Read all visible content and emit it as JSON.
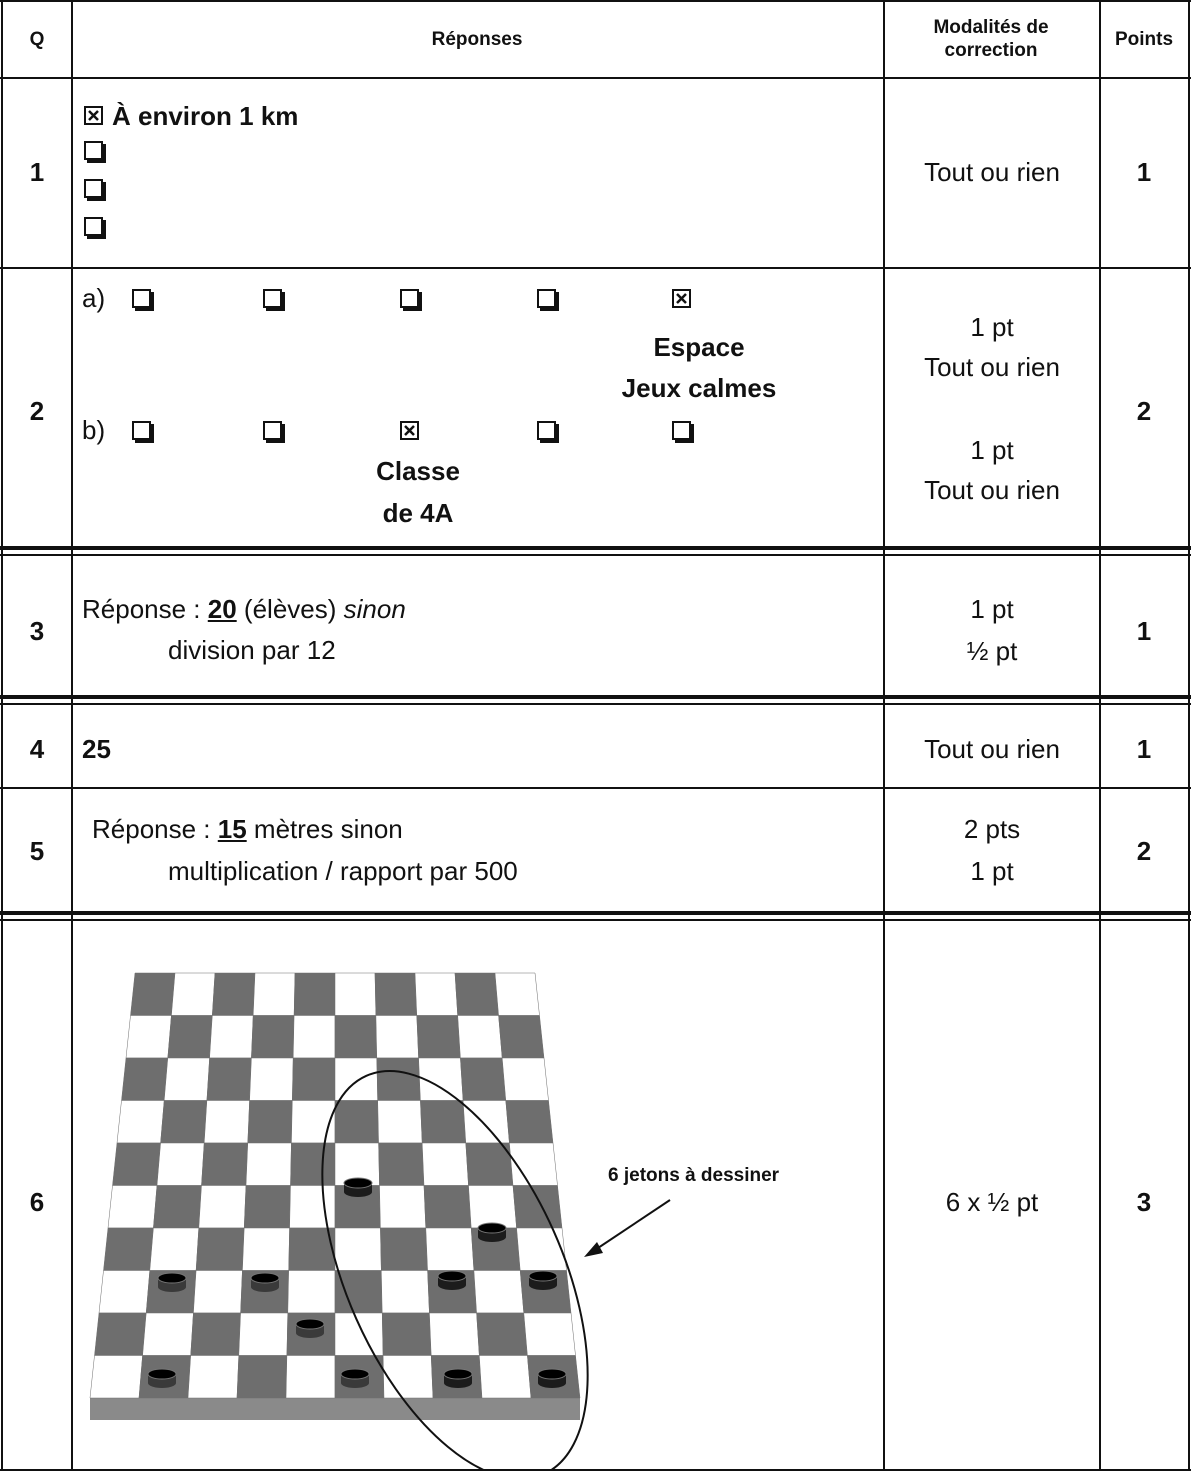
{
  "header": {
    "q": "Q",
    "answers": "Réponses",
    "grading": "Modalités de correction",
    "points": "Points"
  },
  "rows": [
    {
      "q": "1",
      "answer": "À environ 1 km",
      "grading": "Tout ou rien",
      "points": "1"
    },
    {
      "q": "2",
      "a_label": "a)",
      "a_answer": [
        "Espace",
        "Jeux calmes"
      ],
      "b_label": "b)",
      "b_answer": [
        "Classe",
        "de 4A"
      ],
      "grading": [
        "1 pt",
        "Tout ou rien",
        "1 pt",
        "Tout ou rien"
      ],
      "points": "2"
    },
    {
      "q": "3",
      "prefix": "Réponse :",
      "value": "20",
      "unit": "(élèves)",
      "sinon": "sinon",
      "fallback": "division par 12",
      "grading": [
        "1 pt",
        "½ pt"
      ],
      "points": "1"
    },
    {
      "q": "4",
      "answer": "25",
      "grading": "Tout ou rien",
      "points": "1"
    },
    {
      "q": "5",
      "prefix": "Réponse :",
      "value": "15",
      "unit": "mètres sinon",
      "fallback": "multiplication / rapport par 500",
      "grading": [
        "2 pts",
        "1 pt"
      ],
      "points": "2"
    },
    {
      "q": "6",
      "annotation": "6 jetons à dessiner",
      "grading": "6 x ½ pt",
      "points": "3"
    }
  ]
}
